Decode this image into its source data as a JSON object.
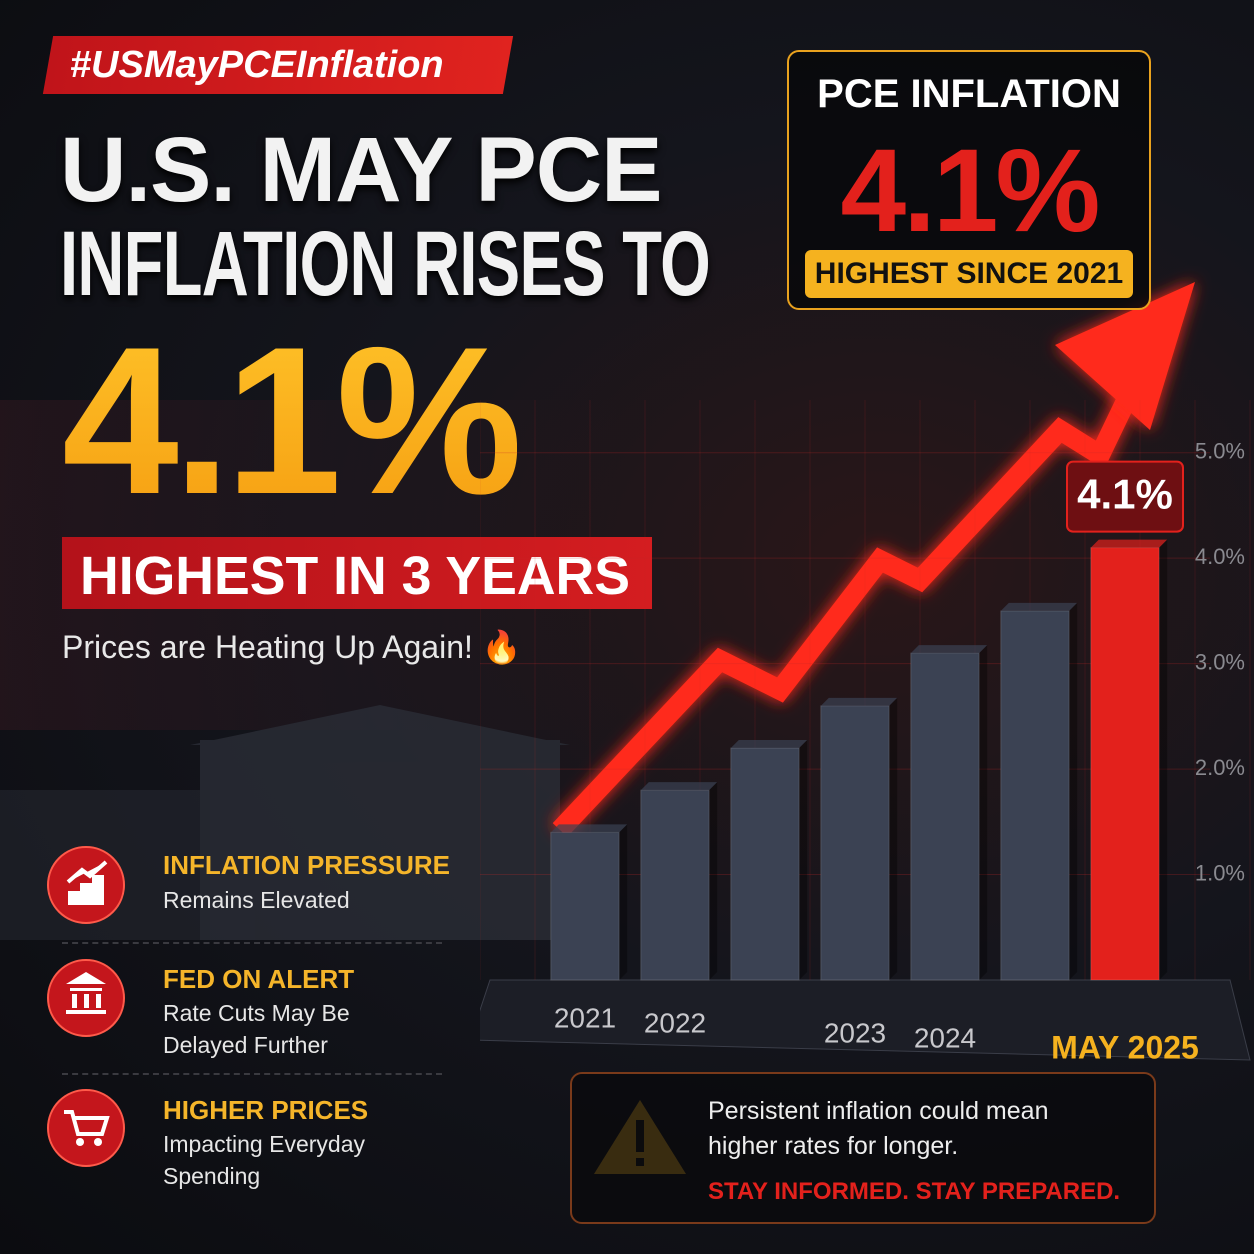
{
  "header": {
    "hashtag": "#USMayPCEInflation",
    "title_line1": "U.S. MAY PCE",
    "title_line2": "INFLATION RISES TO",
    "headline_value": "4.1%",
    "banner": "HIGHEST IN 3 YEARS",
    "subtitle": "Prices are Heating Up Again! 🔥"
  },
  "stat_box": {
    "label": "PCE INFLATION",
    "value": "4.1%",
    "note": "HIGHEST SINCE 2021"
  },
  "chart_data": {
    "type": "bar",
    "categories": [
      "2021",
      "2022",
      null,
      "2023",
      "2024",
      null,
      "MAY 2025"
    ],
    "values": [
      1.4,
      1.8,
      2.2,
      2.6,
      3.1,
      3.5,
      4.1
    ],
    "value_labels": [
      null,
      null,
      null,
      null,
      null,
      null,
      "4.1%"
    ],
    "colors": [
      "#3b4253",
      "#3b4253",
      "#3b4253",
      "#3b4253",
      "#3b4253",
      "#3b4253",
      "#e3211c"
    ],
    "ylim": [
      0,
      5.5
    ],
    "yticks": [
      {
        "value": 1,
        "label": "1.0%"
      },
      {
        "value": 2,
        "label": "2.0%"
      },
      {
        "value": 3,
        "label": "3.0%"
      },
      {
        "value": 4,
        "label": "4.0%"
      },
      {
        "value": 5,
        "label": "5.0%"
      }
    ],
    "grid": true
  },
  "highlights": [
    {
      "title": "INFLATION PRESSURE",
      "text": "Remains Elevated"
    },
    {
      "title": "FED ON ALERT",
      "text": "Rate Cuts May Be Delayed Further"
    },
    {
      "title": "HIGHER PRICES",
      "text": "Impacting Everyday Spending"
    }
  ],
  "warning": {
    "text": "Persistent inflation could mean higher rates for longer.",
    "cta": "STAY INFORMED. STAY PREPARED."
  }
}
